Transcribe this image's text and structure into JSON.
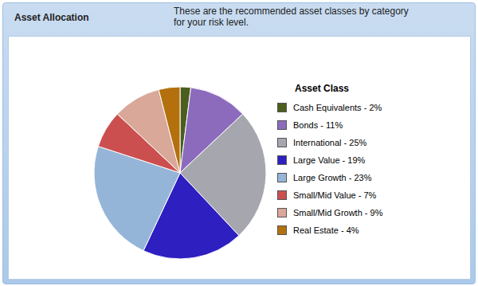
{
  "chart_data": {
    "type": "pie",
    "title": "Asset Allocation",
    "subtitle": "These are the recommended asset classes by category for your risk level.",
    "legend_title": "Asset Class",
    "categories": [
      "Cash Equivalents - 2%",
      "Bonds - 11%",
      "International - 25%",
      "Large Value - 19%",
      "Large Growth - 23%",
      "Small/Mid Value - 7%",
      "Small/Mid Growth - 9%",
      "Real Estate - 4%"
    ],
    "values": [
      2,
      11,
      25,
      19,
      23,
      7,
      9,
      4
    ],
    "colors": [
      "#4b5e1e",
      "#8c6bbd",
      "#a6a6ae",
      "#2e1fc0",
      "#95b5d8",
      "#cc4f4f",
      "#d9a898",
      "#b3700d"
    ],
    "legend": "right"
  }
}
